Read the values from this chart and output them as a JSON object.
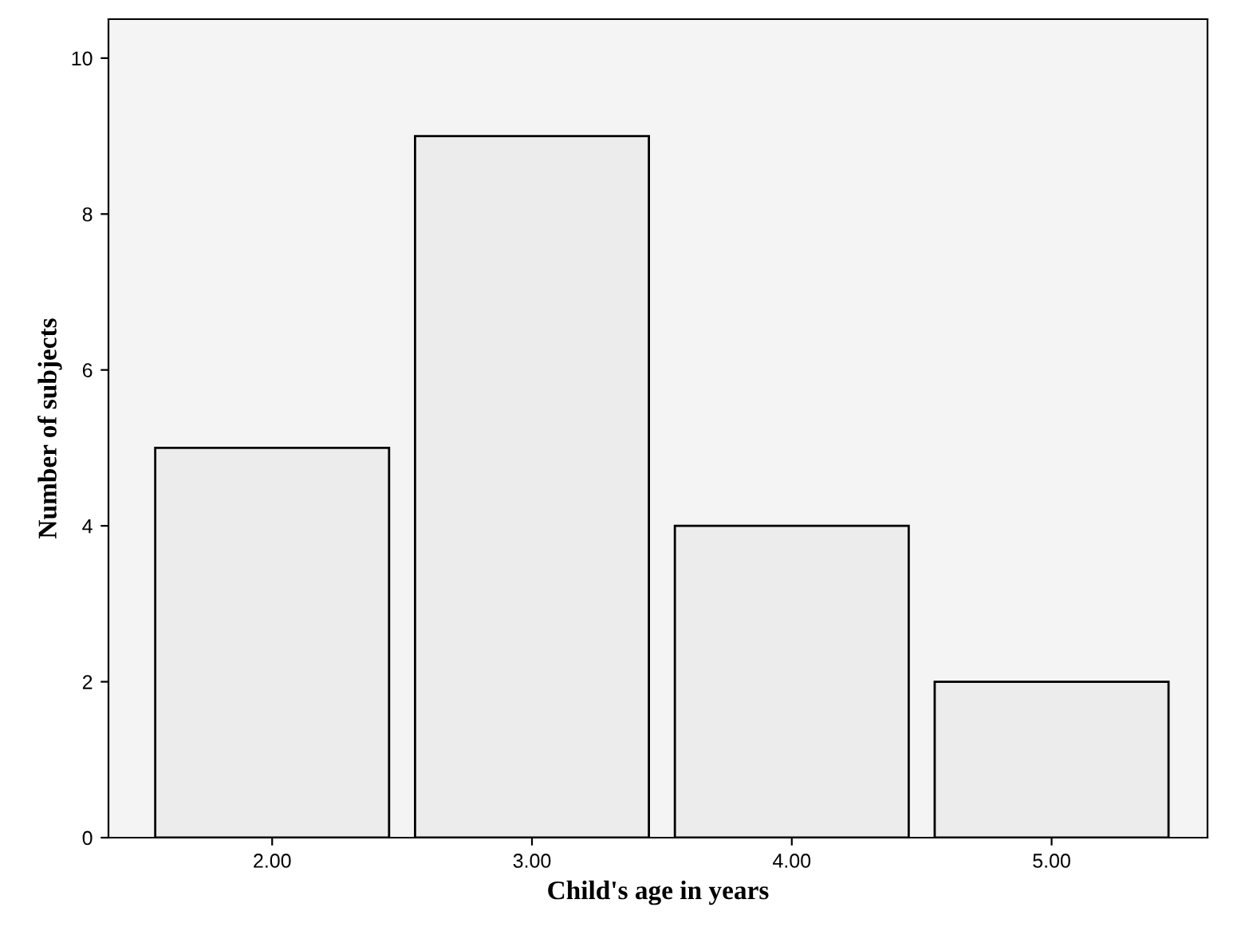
{
  "chart_data": {
    "type": "bar",
    "xlabel": "Child's age in years",
    "ylabel": "Number of subjects",
    "categories": [
      "2.00",
      "3.00",
      "4.00",
      "5.00"
    ],
    "values": [
      5,
      9,
      4,
      2
    ],
    "color": "#ececec",
    "ylim": [
      0,
      10.5
    ],
    "yticks": [
      0,
      2,
      4,
      6,
      8,
      10
    ],
    "grid": false
  }
}
